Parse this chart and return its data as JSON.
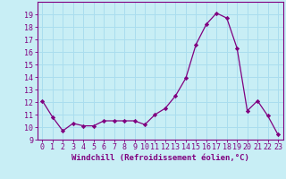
{
  "x": [
    0,
    1,
    2,
    3,
    4,
    5,
    6,
    7,
    8,
    9,
    10,
    11,
    12,
    13,
    14,
    15,
    16,
    17,
    18,
    19,
    20,
    21,
    22,
    23
  ],
  "y": [
    12.1,
    10.8,
    9.7,
    10.3,
    10.1,
    10.1,
    10.5,
    10.5,
    10.5,
    10.5,
    10.2,
    11.0,
    11.5,
    12.5,
    13.9,
    16.6,
    18.2,
    19.1,
    18.7,
    16.3,
    11.3,
    12.1,
    10.9,
    9.4
  ],
  "xlabel": "Windchill (Refroidissement éolien,°C)",
  "ylim": [
    9,
    20
  ],
  "xlim": [
    -0.5,
    23.5
  ],
  "yticks": [
    9,
    10,
    11,
    12,
    13,
    14,
    15,
    16,
    17,
    18,
    19
  ],
  "xticks": [
    0,
    1,
    2,
    3,
    4,
    5,
    6,
    7,
    8,
    9,
    10,
    11,
    12,
    13,
    14,
    15,
    16,
    17,
    18,
    19,
    20,
    21,
    22,
    23
  ],
  "line_color": "#800080",
  "marker_color": "#800080",
  "bg_color": "#c8eef5",
  "grid_color": "#aaddee",
  "xlabel_fontsize": 6.5,
  "tick_fontsize": 6.0
}
